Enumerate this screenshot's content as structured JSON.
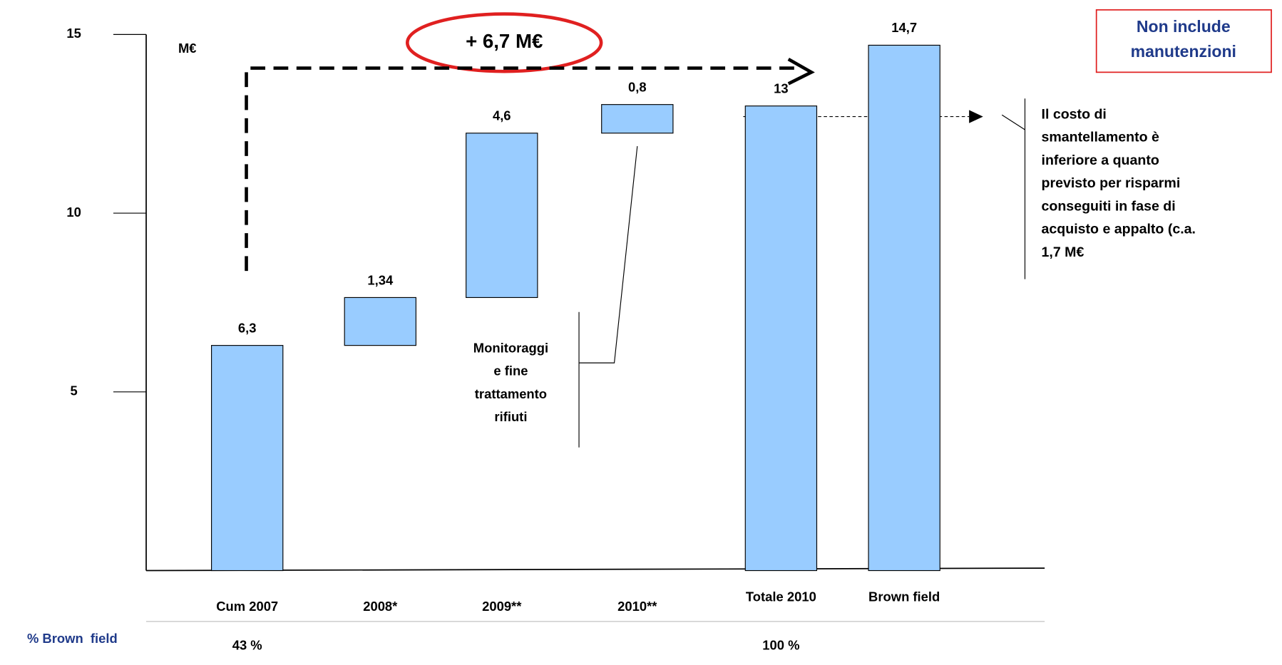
{
  "chart_data": {
    "type": "waterfall",
    "unit": "M€",
    "categories": [
      "Cum 2007",
      "2008*",
      "2009**",
      "2010**",
      "Totale  2010",
      "Brown field"
    ],
    "values": [
      6.3,
      1.34,
      4.6,
      0.8,
      13,
      14.7
    ],
    "value_labels": [
      "6,3",
      "1,34",
      "4,6",
      "0,8",
      "13",
      "14,7"
    ],
    "totals": [
      false,
      false,
      false,
      false,
      true,
      true
    ],
    "color": "#99ccff",
    "ylim": [
      0,
      15
    ],
    "yticks": [
      5,
      10,
      15
    ],
    "footer_row": {
      "label": "% Brown  field",
      "cells": [
        "43 %",
        null,
        null,
        null,
        "100 %",
        null
      ]
    },
    "annotations": {
      "increase": "+ 6,7 M€",
      "note_box": [
        "Non include",
        "manutenzioni"
      ],
      "callout": [
        "Il costo di",
        "smantellamento è",
        "inferiore a quanto",
        "previsto per risparmi",
        "conseguiti in fase di",
        "acquisto e appalto (c.a.",
        "1,7 M€"
      ],
      "monitoring": [
        "Monitoraggi",
        "e fine",
        "trattamento",
        "rifiuti"
      ]
    }
  }
}
